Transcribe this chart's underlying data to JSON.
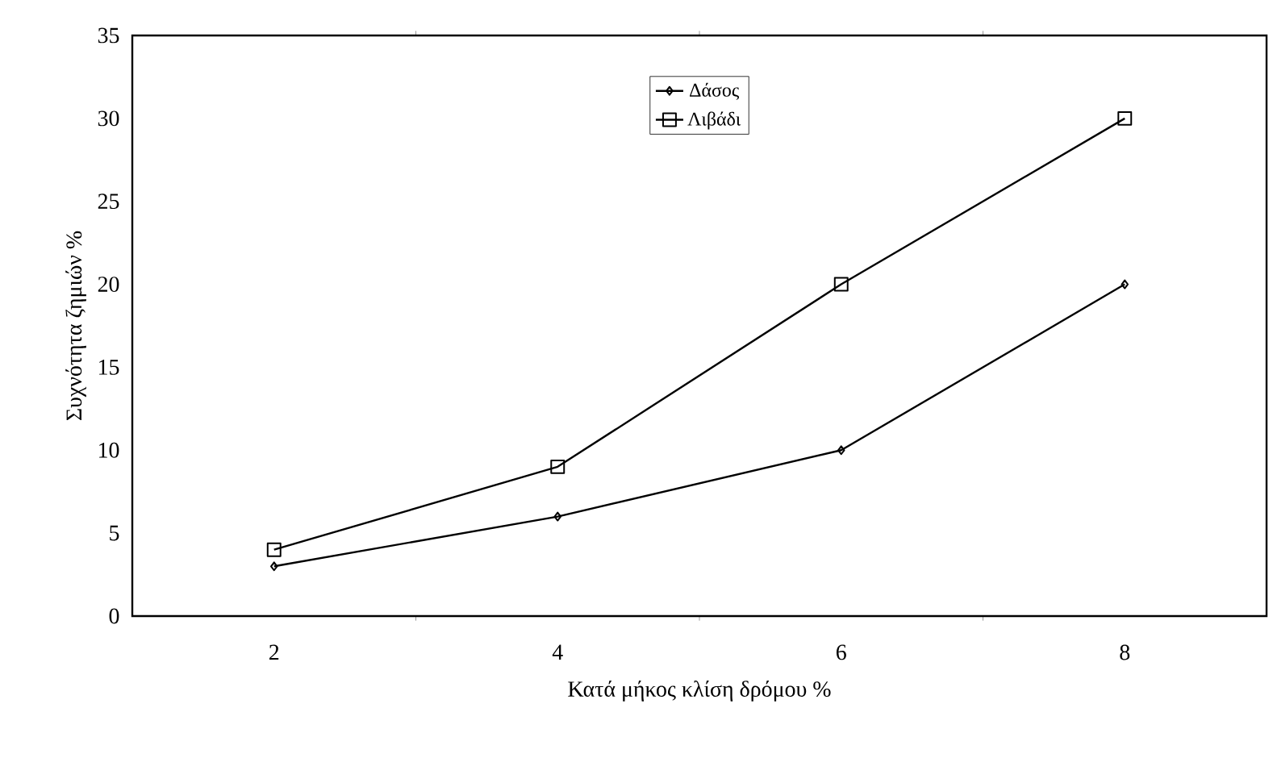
{
  "chart_data": {
    "type": "line",
    "xlabel": "Κατά μήκος κλίση δρόμου %",
    "ylabel": "Συχνότητα ζημιών %",
    "categories": [
      "2",
      "4",
      "6",
      "8"
    ],
    "series": [
      {
        "name": "Δάσος",
        "color": "#000000",
        "marker": "diamond",
        "values": [
          3,
          6,
          10,
          20
        ]
      },
      {
        "name": "Λιβάδι",
        "color": "#000000",
        "marker": "square",
        "values": [
          4,
          9,
          20,
          30
        ]
      }
    ],
    "ylim": [
      0,
      35
    ],
    "yticks": [
      0,
      5,
      10,
      15,
      20,
      25,
      30,
      35
    ],
    "grid": false,
    "legend": "top",
    "line_style": "solid"
  }
}
